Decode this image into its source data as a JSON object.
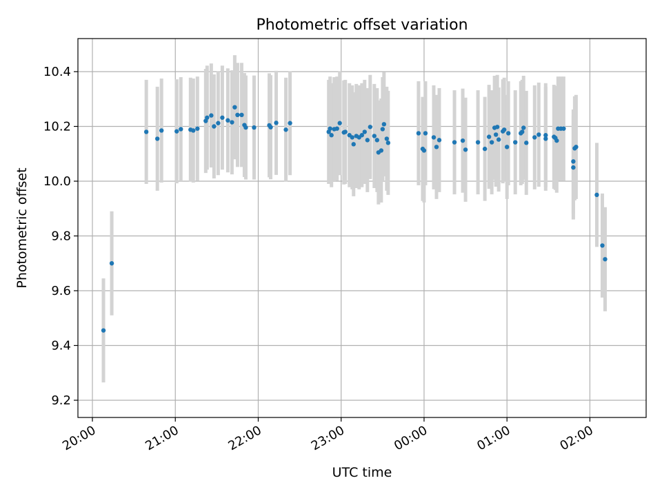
{
  "chart_data": {
    "type": "scatter",
    "title": "Photometric offset variation",
    "xlabel": "UTC time",
    "ylabel": "Photometric offset",
    "x_ticks": [
      "20:00",
      "21:00",
      "22:00",
      "23:00",
      "00:00",
      "01:00",
      "02:00"
    ],
    "y_ticks": [
      "9.2",
      "9.4",
      "9.6",
      "9.8",
      "10.0",
      "10.2",
      "10.4"
    ],
    "xlim": [
      "20:00",
      "02:40"
    ],
    "ylim": [
      9.14,
      10.52
    ],
    "grid": true,
    "colors": {
      "points": "#1f77b4",
      "errorbars": "#d3d3d3",
      "grid": "#b0b0b0"
    },
    "series": [
      {
        "error_bar": "±0.19",
        "points": [
          {
            "t": "20:08",
            "y": 9.455
          },
          {
            "t": "20:14",
            "y": 9.7
          },
          {
            "t": "20:39",
            "y": 10.18
          },
          {
            "t": "20:47",
            "y": 10.155
          },
          {
            "t": "20:50",
            "y": 10.185
          },
          {
            "t": "21:01",
            "y": 10.182
          },
          {
            "t": "21:04",
            "y": 10.19
          },
          {
            "t": "21:11",
            "y": 10.188
          },
          {
            "t": "21:13",
            "y": 10.185
          },
          {
            "t": "21:16",
            "y": 10.192
          },
          {
            "t": "21:22",
            "y": 10.22
          },
          {
            "t": "21:23",
            "y": 10.232
          },
          {
            "t": "21:26",
            "y": 10.24
          },
          {
            "t": "21:28",
            "y": 10.2
          },
          {
            "t": "21:31",
            "y": 10.212
          },
          {
            "t": "21:34",
            "y": 10.232
          },
          {
            "t": "21:38",
            "y": 10.222
          },
          {
            "t": "21:41",
            "y": 10.215
          },
          {
            "t": "21:43",
            "y": 10.27
          },
          {
            "t": "21:45",
            "y": 10.242
          },
          {
            "t": "21:48",
            "y": 10.242
          },
          {
            "t": "21:50",
            "y": 10.205
          },
          {
            "t": "21:51",
            "y": 10.196
          },
          {
            "t": "21:57",
            "y": 10.196
          },
          {
            "t": "22:08",
            "y": 10.204
          },
          {
            "t": "22:09",
            "y": 10.197
          },
          {
            "t": "22:13",
            "y": 10.213
          },
          {
            "t": "22:20",
            "y": 10.188
          },
          {
            "t": "22:23",
            "y": 10.212
          },
          {
            "t": "22:51",
            "y": 10.18
          },
          {
            "t": "22:52",
            "y": 10.192
          },
          {
            "t": "22:53",
            "y": 10.168
          },
          {
            "t": "22:55",
            "y": 10.19
          },
          {
            "t": "22:57",
            "y": 10.192
          },
          {
            "t": "22:59",
            "y": 10.212
          },
          {
            "t": "23:02",
            "y": 10.178
          },
          {
            "t": "23:03",
            "y": 10.18
          },
          {
            "t": "23:06",
            "y": 10.168
          },
          {
            "t": "23:08",
            "y": 10.16
          },
          {
            "t": "23:09",
            "y": 10.135
          },
          {
            "t": "23:11",
            "y": 10.165
          },
          {
            "t": "23:13",
            "y": 10.16
          },
          {
            "t": "23:15",
            "y": 10.168
          },
          {
            "t": "23:17",
            "y": 10.18
          },
          {
            "t": "23:19",
            "y": 10.15
          },
          {
            "t": "23:21",
            "y": 10.198
          },
          {
            "t": "23:24",
            "y": 10.165
          },
          {
            "t": "23:26",
            "y": 10.15
          },
          {
            "t": "23:27",
            "y": 10.105
          },
          {
            "t": "23:29",
            "y": 10.112
          },
          {
            "t": "23:30",
            "y": 10.19
          },
          {
            "t": "23:31",
            "y": 10.208
          },
          {
            "t": "23:33",
            "y": 10.155
          },
          {
            "t": "23:34",
            "y": 10.14
          },
          {
            "t": "23:56",
            "y": 10.175
          },
          {
            "t": "23:59",
            "y": 10.118
          },
          {
            "t": "00:00",
            "y": 10.112
          },
          {
            "t": "00:01",
            "y": 10.175
          },
          {
            "t": "00:07",
            "y": 10.16
          },
          {
            "t": "00:09",
            "y": 10.125
          },
          {
            "t": "00:11",
            "y": 10.15
          },
          {
            "t": "00:22",
            "y": 10.142
          },
          {
            "t": "00:28",
            "y": 10.148
          },
          {
            "t": "00:30",
            "y": 10.115
          },
          {
            "t": "00:39",
            "y": 10.142
          },
          {
            "t": "00:44",
            "y": 10.118
          },
          {
            "t": "00:47",
            "y": 10.162
          },
          {
            "t": "00:49",
            "y": 10.142
          },
          {
            "t": "00:51",
            "y": 10.195
          },
          {
            "t": "00:52",
            "y": 10.17
          },
          {
            "t": "00:53",
            "y": 10.198
          },
          {
            "t": "00:54",
            "y": 10.152
          },
          {
            "t": "00:57",
            "y": 10.182
          },
          {
            "t": "00:58",
            "y": 10.188
          },
          {
            "t": "01:00",
            "y": 10.125
          },
          {
            "t": "01:01",
            "y": 10.175
          },
          {
            "t": "01:06",
            "y": 10.142
          },
          {
            "t": "01:10",
            "y": 10.175
          },
          {
            "t": "01:11",
            "y": 10.18
          },
          {
            "t": "01:12",
            "y": 10.195
          },
          {
            "t": "01:14",
            "y": 10.14
          },
          {
            "t": "01:20",
            "y": 10.16
          },
          {
            "t": "01:23",
            "y": 10.17
          },
          {
            "t": "01:28",
            "y": 10.168
          },
          {
            "t": "01:28",
            "y": 10.155
          },
          {
            "t": "01:34",
            "y": 10.162
          },
          {
            "t": "01:35",
            "y": 10.158
          },
          {
            "t": "01:36",
            "y": 10.148
          },
          {
            "t": "01:37",
            "y": 10.192
          },
          {
            "t": "01:39",
            "y": 10.192
          },
          {
            "t": "01:41",
            "y": 10.192
          },
          {
            "t": "01:48",
            "y": 10.05
          },
          {
            "t": "01:48",
            "y": 10.072
          },
          {
            "t": "01:49",
            "y": 10.12
          },
          {
            "t": "01:50",
            "y": 10.125
          },
          {
            "t": "02:05",
            "y": 9.95
          },
          {
            "t": "02:09",
            "y": 9.765
          },
          {
            "t": "02:11",
            "y": 9.715
          }
        ]
      }
    ]
  }
}
